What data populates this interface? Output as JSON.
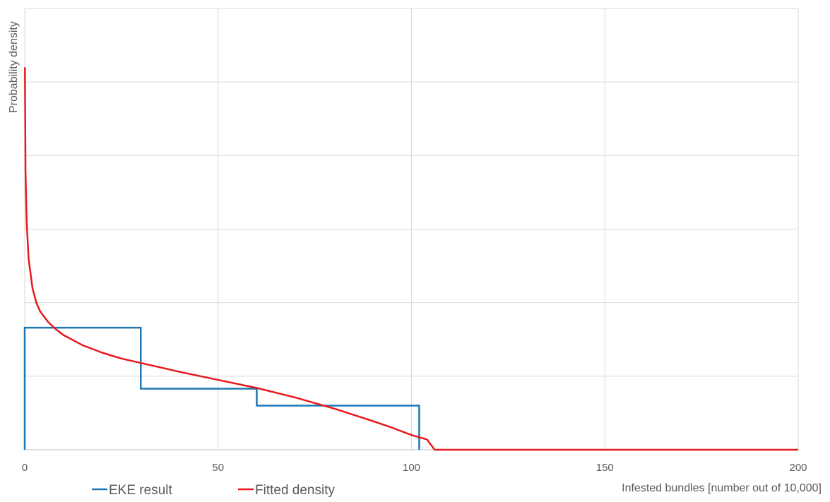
{
  "chart_data": {
    "type": "line",
    "title": "",
    "xlabel": "Infested bundles [number out of 10,000]",
    "ylabel": "Probability density",
    "xlim": [
      0,
      200
    ],
    "ylim": [
      0,
      6
    ],
    "y_ticks_labeled": false,
    "x_ticks": [
      0,
      50,
      100,
      150,
      200
    ],
    "x_tick_labels": [
      "0",
      "50",
      "100",
      "150",
      "200"
    ],
    "grid": true,
    "legend_position": "bottom-left",
    "series": [
      {
        "name": "EKE result",
        "kind": "step",
        "color": "#1F77B4",
        "bins": [
          {
            "x0": 0,
            "x1": 30,
            "density": 1.66
          },
          {
            "x0": 30,
            "x1": 60,
            "density": 0.83
          },
          {
            "x0": 60,
            "x1": 102,
            "density": 0.6
          }
        ]
      },
      {
        "name": "Fitted density",
        "kind": "line",
        "color": "#E8191C",
        "points": [
          [
            0.05,
            5.2
          ],
          [
            0.2,
            3.8
          ],
          [
            0.5,
            3.1
          ],
          [
            1,
            2.6
          ],
          [
            2,
            2.2
          ],
          [
            3,
            2.0
          ],
          [
            4,
            1.88
          ],
          [
            6,
            1.74
          ],
          [
            8,
            1.64
          ],
          [
            10,
            1.56
          ],
          [
            15,
            1.42
          ],
          [
            20,
            1.32
          ],
          [
            25,
            1.24
          ],
          [
            30,
            1.18
          ],
          [
            40,
            1.06
          ],
          [
            50,
            0.95
          ],
          [
            60,
            0.84
          ],
          [
            70,
            0.71
          ],
          [
            80,
            0.56
          ],
          [
            90,
            0.39
          ],
          [
            95,
            0.3
          ],
          [
            100,
            0.2
          ],
          [
            104,
            0.14
          ],
          [
            106,
            0.0
          ],
          [
            120,
            0.0
          ],
          [
            150,
            0.0
          ],
          [
            200,
            0.0
          ]
        ]
      }
    ]
  }
}
